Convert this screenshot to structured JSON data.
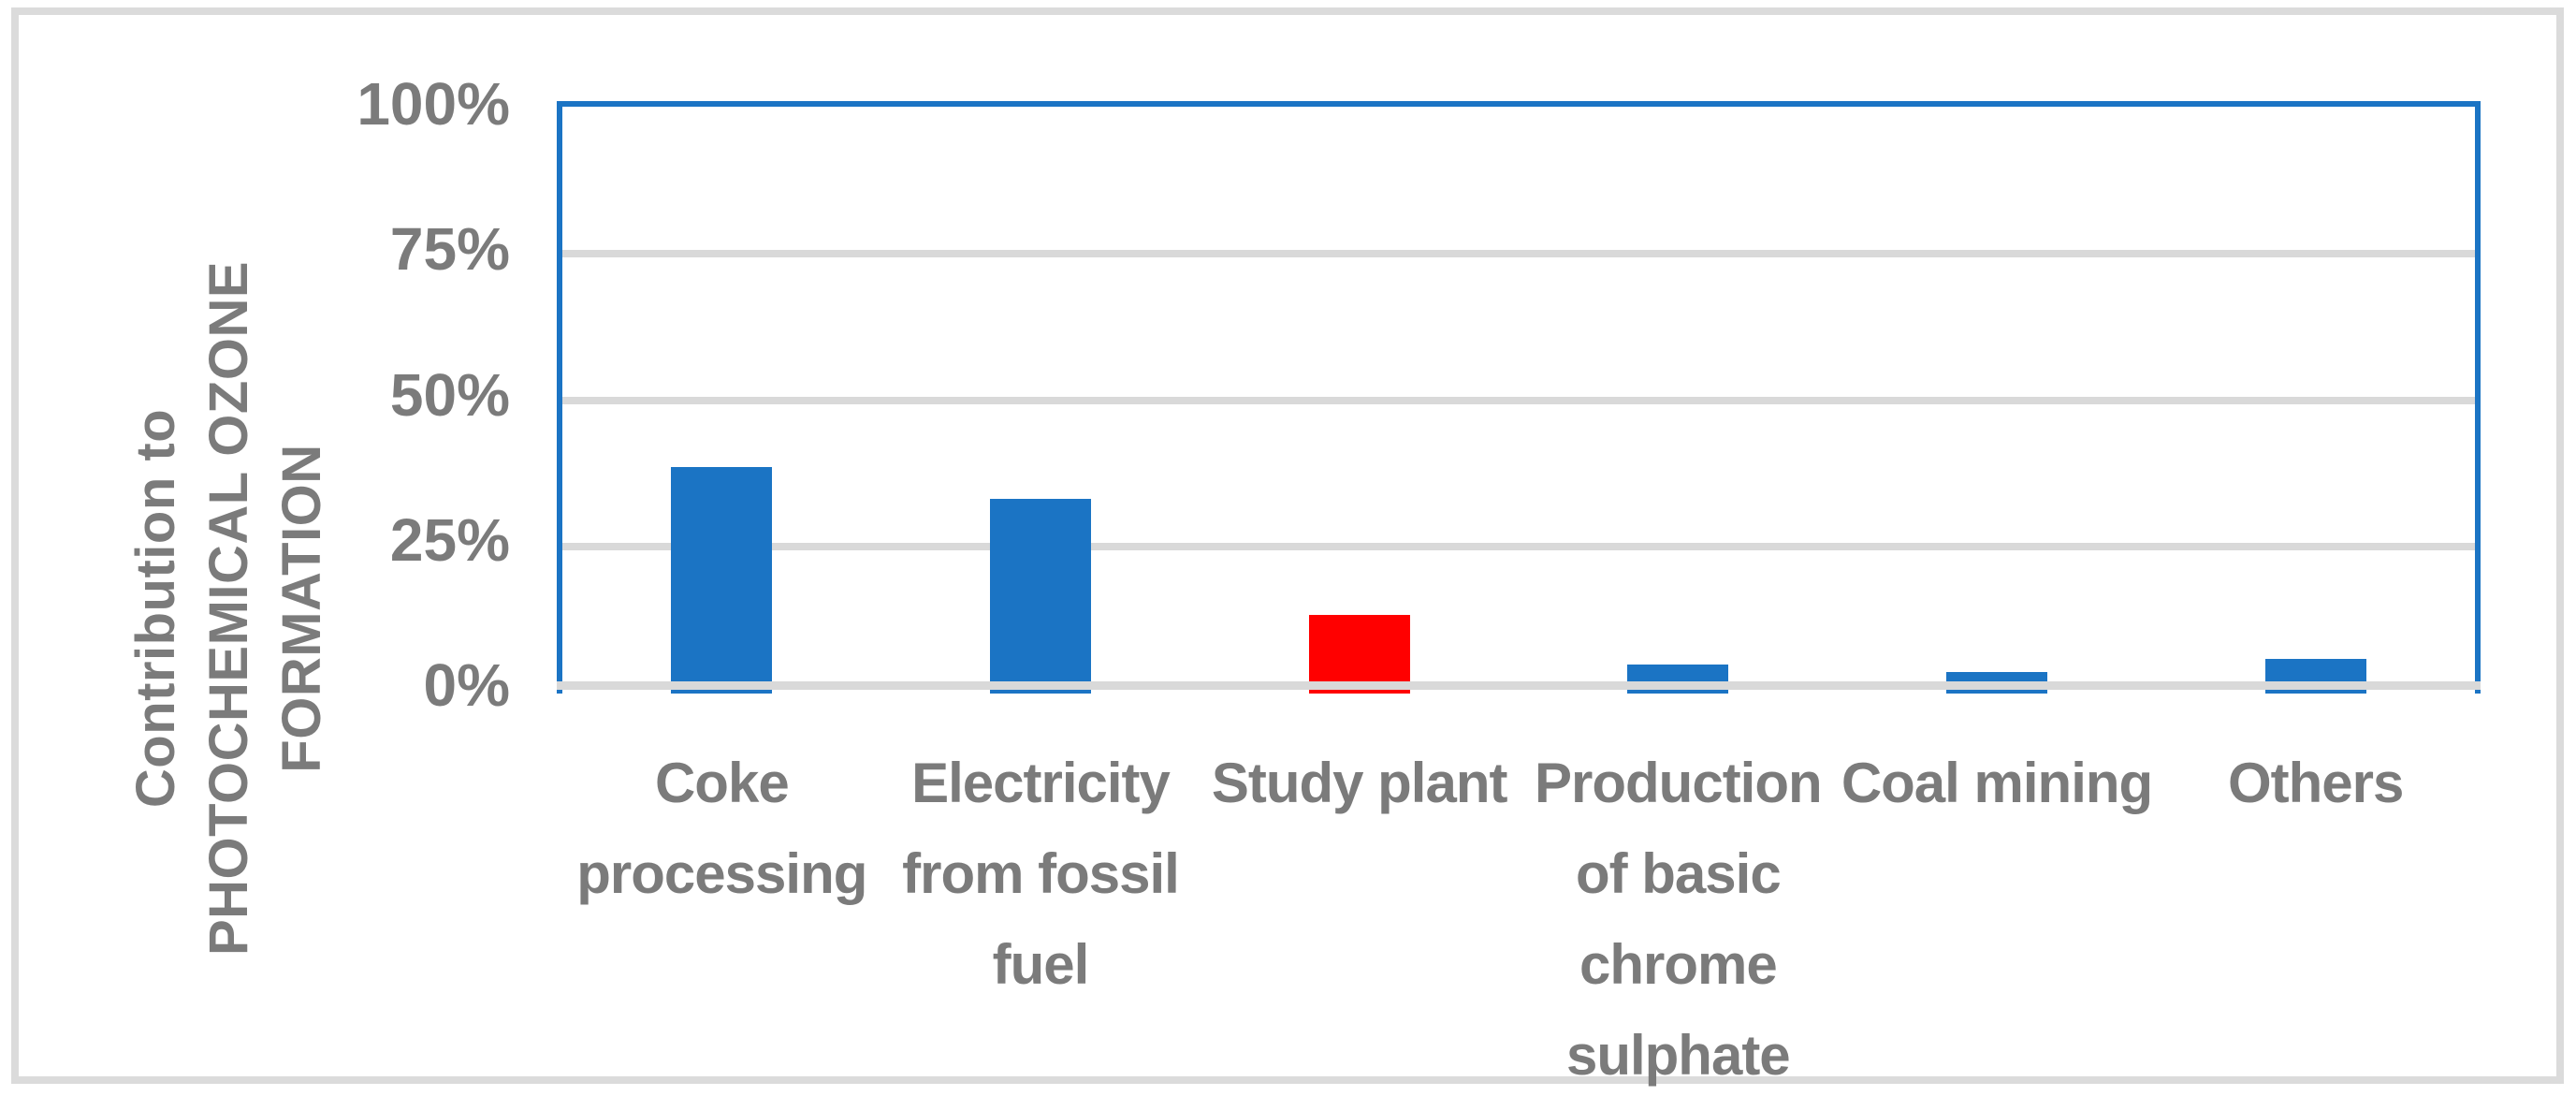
{
  "chart_data": {
    "type": "bar",
    "title": "",
    "xlabel": "",
    "ylabel": "Contribution to PHOTOCHEMICAL OZONE FORMATION",
    "ylabel_lines": [
      "Contribution to",
      "PHOTOCHEMICAL OZONE",
      "FORMATION"
    ],
    "categories": [
      "Coke processing",
      "Electricity from fossil fuel",
      "Study plant",
      "Production of basic chrome sulphate",
      "Coal mining",
      "Others"
    ],
    "category_lines": [
      [
        "Coke",
        "processing"
      ],
      [
        "Electricity",
        "from fossil",
        "fuel"
      ],
      [
        "Study plant"
      ],
      [
        "Production",
        "of basic",
        "chrome",
        "sulphate"
      ],
      [
        "Coal mining"
      ],
      [
        "Others"
      ]
    ],
    "values": [
      39,
      33.5,
      13.5,
      5,
      3.7,
      6
    ],
    "unit": "%",
    "yticks": [
      "100%",
      "75%",
      "50%",
      "25%",
      "0%"
    ],
    "ylim": [
      0,
      100
    ],
    "grid": "horizontal",
    "legend": "none",
    "bar_colors": [
      "#1b74c4",
      "#1b74c4",
      "#ff0000",
      "#1b74c4",
      "#1b74c4",
      "#1b74c4"
    ],
    "colors": {
      "bar_blue": "#1b74c4",
      "highlight_red": "#ff0000",
      "text_gray": "#7b7b7b",
      "gridline_gray": "#d9d9d9",
      "outer_border_gray": "#dbdbdb",
      "plot_border_blue": "#1b74c4"
    }
  }
}
